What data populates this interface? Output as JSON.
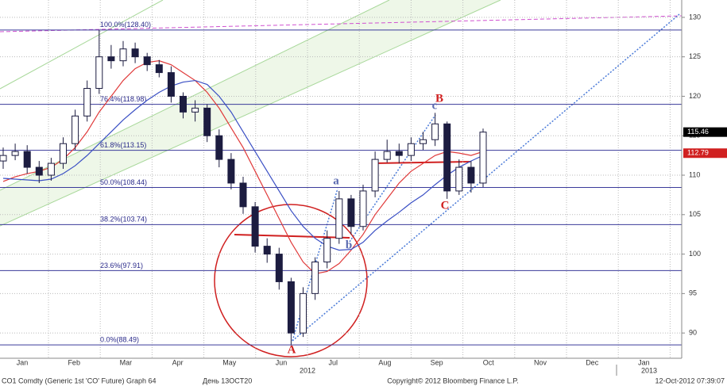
{
  "chart_data": {
    "type": "candlestick",
    "categories": [
      "Jan",
      "Feb",
      "Mar",
      "Apr",
      "May",
      "Jun",
      "Jul",
      "Aug",
      "Sep",
      "Oct",
      "Nov",
      "Dec",
      "Jan"
    ],
    "years": [
      "2012",
      "2013"
    ],
    "open": [
      111.8,
      112.5,
      113,
      111,
      110,
      111.5,
      114,
      117.5,
      121,
      125,
      124.5,
      126,
      125,
      124,
      123,
      120,
      118,
      118.5,
      115,
      112,
      109,
      106,
      101,
      100,
      96.5,
      90,
      95,
      99,
      102,
      107,
      103.5,
      108,
      112,
      113,
      112.5,
      114,
      114.5,
      116.5,
      108,
      111,
      109
    ],
    "high": [
      113.5,
      114,
      113.8,
      111.8,
      112.2,
      114.8,
      118.3,
      122,
      128.4,
      126.5,
      127,
      126.8,
      125.5,
      124.6,
      123.8,
      120.5,
      119.5,
      119,
      115.8,
      112.8,
      109.8,
      106.6,
      102,
      100.8,
      97,
      95.8,
      99.6,
      103,
      108,
      107.5,
      108.8,
      113,
      114.5,
      114,
      114.8,
      115.5,
      117.9,
      116.8,
      112,
      111.8,
      115.9
    ],
    "low": [
      110.8,
      111.9,
      110.2,
      109,
      109.3,
      110.8,
      113.2,
      116.8,
      120.3,
      123.5,
      123.8,
      124.2,
      123.2,
      122.4,
      119.2,
      117.2,
      116.8,
      114.2,
      111,
      108.2,
      105.1,
      100.2,
      98.9,
      95.5,
      88.49,
      89.5,
      94.2,
      98.2,
      101.3,
      102.5,
      103,
      107.2,
      111.6,
      111.5,
      111.8,
      113.2,
      113.7,
      107,
      107.5,
      107.8,
      108.5
    ],
    "close": [
      112.5,
      113,
      111,
      110,
      111.5,
      114,
      117.5,
      121,
      125,
      124.5,
      126,
      125,
      124,
      123,
      120,
      118,
      118.5,
      115,
      112,
      109,
      106,
      101,
      100,
      96.5,
      90,
      95,
      99,
      102,
      107,
      103.5,
      108,
      112,
      113,
      112.5,
      114,
      114.5,
      116.5,
      108,
      111,
      109,
      115.46
    ],
    "up_color": "#ffffff",
    "down_color": "#1c1c40",
    "overlays": [
      {
        "color": "#e03a3a",
        "values": [
          109.2,
          109.8,
          110.2,
          110.5,
          111,
          112,
          113.5,
          115.5,
          118,
          120,
          122,
          123.5,
          124.3,
          124.5,
          124,
          123,
          122,
          120.5,
          118.5,
          116,
          113.5,
          110.5,
          107.5,
          104.5,
          101.5,
          99,
          97.5,
          97.8,
          98.8,
          100.5,
          102.5,
          105,
          107,
          109,
          110.5,
          111.5,
          112.5,
          113,
          112.8,
          112.5,
          113
        ]
      },
      {
        "color": "#3a4fc4",
        "values": [
          109.6,
          109.5,
          109.4,
          109.3,
          109.5,
          110.2,
          111.2,
          112.5,
          114,
          115.5,
          117,
          118.3,
          119.5,
          120.5,
          121.3,
          121.8,
          122,
          121.5,
          120,
          118,
          115.5,
          113,
          110.5,
          108,
          105.5,
          103.5,
          102,
          101,
          100.5,
          100.6,
          101.5,
          103,
          104.2,
          105.3,
          106.5,
          107.5,
          108.8,
          110,
          111,
          111.8,
          112.5
        ]
      }
    ],
    "fib_levels": [
      {
        "value": 128.4,
        "label": "100.0%(128.40)"
      },
      {
        "value": 118.98,
        "label": "76.4%(118.98)"
      },
      {
        "value": 113.15,
        "label": "61.8%(113.15)"
      },
      {
        "value": 108.44,
        "label": "50.0%(108.44)"
      },
      {
        "value": 103.74,
        "label": "38.2%(103.74)"
      },
      {
        "value": 97.91,
        "label": "23.6%(97.91)"
      },
      {
        "value": 88.49,
        "label": "0.0%(88.49)"
      }
    ],
    "last_price": 115.46,
    "ma_price": 112.79,
    "ylim": [
      86.8,
      132.2
    ],
    "yticks": [
      90,
      95,
      100,
      105,
      110,
      115,
      120,
      125,
      130
    ],
    "wave_labels": [
      "A",
      "B",
      "C"
    ],
    "subwave_labels": [
      "a",
      "b",
      "c"
    ]
  },
  "footer": {
    "security": "CO1 Comdty (Generic 1st 'CO' Future) Graph 64",
    "period": "День 13OCT20",
    "copyright": "Copyright© 2012 Bloomberg Finance L.P.",
    "timestamp": "12-Oct-2012 07:39:07"
  }
}
